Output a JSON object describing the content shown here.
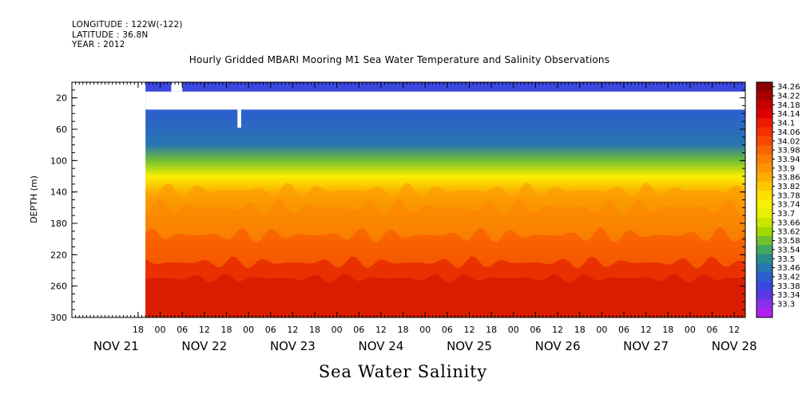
{
  "header": {
    "longitude": "LONGITUDE : 122W(-122)",
    "latitude": "LATITUDE : 36.8N",
    "year": "YEAR : 2012"
  },
  "chart_data": {
    "type": "heatmap",
    "title": "Hourly Gridded MBARI Mooring M1 Sea Water Temperature and Salinity Observations",
    "bottom_title": "Sea Water Salinity",
    "ylabel": "DEPTH (m)",
    "ylim": [
      300,
      0
    ],
    "y_axis_inverted": true,
    "y_ticks": [
      20,
      60,
      100,
      140,
      180,
      220,
      260,
      300
    ],
    "x_start": "2012-11-21T00:00",
    "x_end": "2012-11-28T15:00",
    "x_hour_ticks": [
      {
        "x": "2012-11-21T18:00",
        "label": "18"
      },
      {
        "x": "2012-11-22T00:00",
        "label": "00"
      },
      {
        "x": "2012-11-22T06:00",
        "label": "06"
      },
      {
        "x": "2012-11-22T12:00",
        "label": "12"
      },
      {
        "x": "2012-11-22T18:00",
        "label": "18"
      },
      {
        "x": "2012-11-23T00:00",
        "label": "00"
      },
      {
        "x": "2012-11-23T06:00",
        "label": "06"
      },
      {
        "x": "2012-11-23T12:00",
        "label": "12"
      },
      {
        "x": "2012-11-23T18:00",
        "label": "18"
      },
      {
        "x": "2012-11-24T00:00",
        "label": "00"
      },
      {
        "x": "2012-11-24T06:00",
        "label": "06"
      },
      {
        "x": "2012-11-24T12:00",
        "label": "12"
      },
      {
        "x": "2012-11-24T18:00",
        "label": "18"
      },
      {
        "x": "2012-11-25T00:00",
        "label": "00"
      },
      {
        "x": "2012-11-25T06:00",
        "label": "06"
      },
      {
        "x": "2012-11-25T12:00",
        "label": "12"
      },
      {
        "x": "2012-11-25T18:00",
        "label": "18"
      },
      {
        "x": "2012-11-26T00:00",
        "label": "00"
      },
      {
        "x": "2012-11-26T06:00",
        "label": "06"
      },
      {
        "x": "2012-11-26T12:00",
        "label": "12"
      },
      {
        "x": "2012-11-26T18:00",
        "label": "18"
      },
      {
        "x": "2012-11-27T00:00",
        "label": "00"
      },
      {
        "x": "2012-11-27T06:00",
        "label": "06"
      },
      {
        "x": "2012-11-27T12:00",
        "label": "12"
      },
      {
        "x": "2012-11-27T18:00",
        "label": "18"
      },
      {
        "x": "2012-11-28T00:00",
        "label": "00"
      },
      {
        "x": "2012-11-28T06:00",
        "label": "06"
      },
      {
        "x": "2012-11-28T12:00",
        "label": "12"
      }
    ],
    "x_day_labels": [
      {
        "x": "2012-11-21T12:00",
        "label": "NOV 21"
      },
      {
        "x": "2012-11-22T12:00",
        "label": "NOV 22"
      },
      {
        "x": "2012-11-23T12:00",
        "label": "NOV 23"
      },
      {
        "x": "2012-11-24T12:00",
        "label": "NOV 24"
      },
      {
        "x": "2012-11-25T12:00",
        "label": "NOV 25"
      },
      {
        "x": "2012-11-26T12:00",
        "label": "NOV 26"
      },
      {
        "x": "2012-11-27T12:00",
        "label": "NOV 27"
      },
      {
        "x": "2012-11-28T12:00",
        "label": "NOV 28"
      }
    ],
    "data_start": "2012-11-21T20:00",
    "salinity_profile": [
      {
        "depth": 10,
        "value": 33.43
      },
      {
        "depth": 40,
        "value": 33.46
      },
      {
        "depth": 80,
        "value": 33.52
      },
      {
        "depth": 100,
        "value": 33.6
      },
      {
        "depth": 120,
        "value": 33.76
      },
      {
        "depth": 140,
        "value": 33.88
      },
      {
        "depth": 160,
        "value": 33.92
      },
      {
        "depth": 180,
        "value": 33.96
      },
      {
        "depth": 200,
        "value": 34.0
      },
      {
        "depth": 220,
        "value": 34.08
      },
      {
        "depth": 240,
        "value": 34.15
      },
      {
        "depth": 260,
        "value": 34.18
      },
      {
        "depth": 280,
        "value": 34.14
      },
      {
        "depth": 300,
        "value": 34.1
      }
    ],
    "no_data_depth_band": [
      12,
      35
    ],
    "colorbar": {
      "labels": [
        "34.26",
        "34.22",
        "34.18",
        "34.14",
        "34.1",
        "34.06",
        "34.02",
        "33.98",
        "33.94",
        "33.9",
        "33.86",
        "33.82",
        "33.78",
        "33.74",
        "33.7",
        "33.66",
        "33.62",
        "33.58",
        "33.54",
        "33.5",
        "33.46",
        "33.42",
        "33.38",
        "33.34",
        "33.3"
      ],
      "colors": [
        "#8b0000",
        "#a80000",
        "#c40000",
        "#dd0000",
        "#ee1a00",
        "#f43000",
        "#f74a00",
        "#f96400",
        "#fa7e00",
        "#fb9600",
        "#fcae00",
        "#fdc800",
        "#fde000",
        "#f8f000",
        "#e8f000",
        "#c8e600",
        "#a0d800",
        "#70c030",
        "#40a860",
        "#2a8c88",
        "#2876b0",
        "#2c60cc",
        "#3a48e0",
        "#5a38e6",
        "#8a30e8",
        "#b020f0"
      ]
    }
  }
}
